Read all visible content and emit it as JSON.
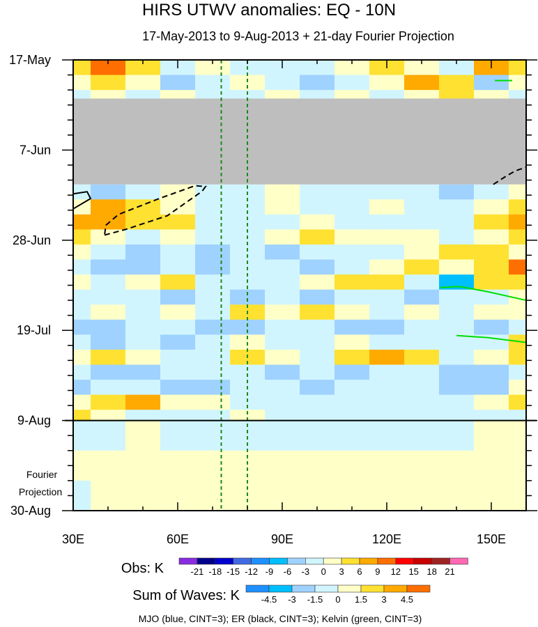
{
  "chart_data": {
    "type": "heatmap",
    "title": "HIRS UTWV anomalies: EQ - 10N",
    "subtitle": "17-May-2013 to 9-Aug-2013 + 21-day Fourier Projection",
    "xlabel": "",
    "ylabel": "",
    "xlim": [
      30,
      160
    ],
    "x_unit": "degrees East",
    "ylim_days_from_start": [
      0,
      105
    ],
    "x_ticks": [
      {
        "value": 30,
        "label": "30E"
      },
      {
        "value": 60,
        "label": "60E"
      },
      {
        "value": 90,
        "label": "90E"
      },
      {
        "value": 120,
        "label": "120E"
      },
      {
        "value": 150,
        "label": "150E"
      }
    ],
    "y_ticks": [
      {
        "day": 0,
        "label": "17-May"
      },
      {
        "day": 21,
        "label": "7-Jun"
      },
      {
        "day": 42,
        "label": "28-Jun"
      },
      {
        "day": 63,
        "label": "19-Jul"
      },
      {
        "day": 84,
        "label": "9-Aug"
      },
      {
        "day": 105,
        "label": "30-Aug"
      }
    ],
    "projection_label": [
      "Fourier",
      "Projection"
    ],
    "observation_end_day": 84,
    "missing_data_days": [
      9,
      29
    ],
    "reference_longitudes": [
      72.5,
      80
    ],
    "grid_lons": [
      30,
      40,
      50,
      60,
      70,
      80,
      90,
      100,
      110,
      120,
      130,
      140,
      150,
      160
    ],
    "obs_rows": [
      {
        "day0": 0,
        "day1": 3.5,
        "values": [
          4.5,
          10.5,
          4.5,
          -1.5,
          1.5,
          -1.5,
          -1.5,
          -1.5,
          1.5,
          4.5,
          1.5,
          -1.5,
          7.5,
          4.5
        ]
      },
      {
        "day0": 3.5,
        "day1": 7,
        "values": [
          1.5,
          4.5,
          1.5,
          -4.5,
          -1.5,
          1.5,
          -1.5,
          -4.5,
          -1.5,
          1.5,
          7.5,
          4.5,
          -4.5,
          1.5
        ]
      },
      {
        "day0": 7,
        "day1": 9,
        "values": [
          -1.5,
          1.5,
          -1.5,
          1.5,
          -1.5,
          -1.5,
          1.5,
          -1.5,
          1.5,
          -1.5,
          1.5,
          4.5,
          1.5,
          -1.5
        ]
      },
      {
        "day0": 29,
        "day1": 32.5,
        "values": [
          -1.5,
          -4.5,
          -1.5,
          1.5,
          -1.5,
          -1.5,
          1.5,
          -1.5,
          -1.5,
          -1.5,
          -1.5,
          -4.5,
          -1.5,
          1.5
        ]
      },
      {
        "day0": 32.5,
        "day1": 36,
        "values": [
          1.5,
          7.5,
          4.5,
          1.5,
          -1.5,
          -1.5,
          1.5,
          -1.5,
          -1.5,
          1.5,
          -1.5,
          -1.5,
          1.5,
          4.5
        ]
      },
      {
        "day0": 36,
        "day1": 39.5,
        "values": [
          7.5,
          7.5,
          4.5,
          4.5,
          -1.5,
          -1.5,
          -1.5,
          1.5,
          -1.5,
          -1.5,
          -1.5,
          -1.5,
          4.5,
          7.5
        ]
      },
      {
        "day0": 39.5,
        "day1": 43,
        "values": [
          4.5,
          1.5,
          -1.5,
          1.5,
          -1.5,
          -1.5,
          1.5,
          4.5,
          1.5,
          1.5,
          1.5,
          -1.5,
          1.5,
          4.5
        ]
      },
      {
        "day0": 43,
        "day1": 46.5,
        "values": [
          1.5,
          -1.5,
          -4.5,
          -1.5,
          -4.5,
          -1.5,
          -4.5,
          -1.5,
          -1.5,
          -1.5,
          1.5,
          4.5,
          4.5,
          1.5
        ]
      },
      {
        "day0": 46.5,
        "day1": 50,
        "values": [
          -1.5,
          -4.5,
          -4.5,
          -1.5,
          -4.5,
          -1.5,
          -1.5,
          -4.5,
          -1.5,
          1.5,
          4.5,
          1.5,
          4.5,
          10.5
        ]
      },
      {
        "day0": 50,
        "day1": 53.5,
        "values": [
          1.5,
          -1.5,
          1.5,
          4.5,
          -1.5,
          -1.5,
          -1.5,
          1.5,
          4.5,
          4.5,
          -1.5,
          -7.5,
          4.5,
          4.5
        ]
      },
      {
        "day0": 53.5,
        "day1": 57,
        "values": [
          -1.5,
          -1.5,
          -1.5,
          -4.5,
          -1.5,
          -4.5,
          -1.5,
          -4.5,
          -1.5,
          -1.5,
          -4.5,
          -1.5,
          -1.5,
          1.5
        ]
      },
      {
        "day0": 57,
        "day1": 60.5,
        "values": [
          -1.5,
          1.5,
          -1.5,
          1.5,
          -1.5,
          4.5,
          1.5,
          4.5,
          1.5,
          -1.5,
          1.5,
          -1.5,
          1.5,
          1.5
        ]
      },
      {
        "day0": 60.5,
        "day1": 64,
        "values": [
          -4.5,
          -4.5,
          -1.5,
          -1.5,
          -4.5,
          -4.5,
          -1.5,
          -1.5,
          -4.5,
          -4.5,
          -1.5,
          -1.5,
          -4.5,
          -1.5
        ]
      },
      {
        "day0": 64,
        "day1": 67.5,
        "values": [
          -1.5,
          -4.5,
          -1.5,
          -4.5,
          -1.5,
          1.5,
          -1.5,
          -1.5,
          1.5,
          -1.5,
          -1.5,
          -1.5,
          -1.5,
          4.5
        ]
      },
      {
        "day0": 67.5,
        "day1": 71,
        "values": [
          1.5,
          4.5,
          1.5,
          -1.5,
          -1.5,
          4.5,
          1.5,
          -1.5,
          4.5,
          7.5,
          4.5,
          -1.5,
          1.5,
          4.5
        ]
      },
      {
        "day0": 71,
        "day1": 74.5,
        "values": [
          -1.5,
          -4.5,
          -4.5,
          -1.5,
          -1.5,
          -1.5,
          -4.5,
          -1.5,
          -4.5,
          -1.5,
          -1.5,
          -4.5,
          -4.5,
          -1.5
        ]
      },
      {
        "day0": 74.5,
        "day1": 78,
        "values": [
          -4.5,
          -1.5,
          -1.5,
          -4.5,
          -4.5,
          -1.5,
          -1.5,
          -4.5,
          -1.5,
          -1.5,
          -1.5,
          -4.5,
          -4.5,
          1.5
        ]
      },
      {
        "day0": 78,
        "day1": 81.5,
        "values": [
          1.5,
          4.5,
          7.5,
          1.5,
          1.5,
          -1.5,
          -1.5,
          -1.5,
          -1.5,
          -1.5,
          -1.5,
          -1.5,
          1.5,
          4.5
        ]
      },
      {
        "day0": 81.5,
        "day1": 84,
        "values": [
          4.5,
          1.5,
          -1.5,
          -1.5,
          -1.5,
          1.5,
          -1.5,
          -1.5,
          -1.5,
          -1.5,
          -1.5,
          -1.5,
          -1.5,
          -1.5
        ]
      }
    ],
    "projection_rows": [
      {
        "day0": 84,
        "day1": 91,
        "values": [
          -0.75,
          -0.75,
          0.75,
          -0.75,
          -0.75,
          -0.75,
          -0.75,
          -0.75,
          -0.75,
          -0.75,
          -0.75,
          -0.75,
          0.75,
          0.75
        ]
      },
      {
        "day0": 91,
        "day1": 98,
        "values": [
          0.75,
          0.75,
          0.75,
          0.75,
          0.75,
          0.75,
          0.75,
          0.75,
          0.75,
          0.75,
          0.75,
          0.75,
          0.75,
          0.75
        ]
      },
      {
        "day0": 98,
        "day1": 105,
        "values": [
          -0.75,
          0.75,
          0.75,
          0.75,
          0.75,
          0.75,
          0.75,
          0.75,
          0.75,
          0.75,
          0.75,
          0.75,
          0.75,
          0.75
        ]
      }
    ],
    "contours": [
      {
        "wave": "ER",
        "color": "#000000",
        "dashed": true,
        "closed": true,
        "points": [
          [
            39,
            40.8
          ],
          [
            45,
            39.5
          ],
          [
            57,
            36.3
          ],
          [
            67,
            30.6
          ],
          [
            68,
            29.5
          ],
          [
            65,
            29.3
          ],
          [
            55,
            32.2
          ],
          [
            43,
            36
          ],
          [
            39.4,
            38.5
          ]
        ]
      },
      {
        "wave": "ER",
        "color": "#000000",
        "dashed": false,
        "closed": false,
        "points": [
          [
            30,
            34.7
          ],
          [
            35,
            32.3
          ],
          [
            34,
            30.7
          ],
          [
            30,
            31.2
          ]
        ]
      },
      {
        "wave": "ER",
        "color": "#000000",
        "dashed": true,
        "closed": false,
        "points": [
          [
            150.6,
            29
          ],
          [
            154,
            27.2
          ],
          [
            157,
            25.8
          ],
          [
            160,
            25
          ]
        ]
      },
      {
        "wave": "Kelvin",
        "color": "#00dd00",
        "dashed": false,
        "closed": false,
        "points": [
          [
            135.4,
            53
          ],
          [
            141,
            52.8
          ],
          [
            149,
            54
          ],
          [
            160,
            56
          ]
        ]
      },
      {
        "wave": "Kelvin",
        "color": "#00dd00",
        "dashed": false,
        "closed": false,
        "points": [
          [
            140,
            64.2
          ],
          [
            149,
            64.7
          ],
          [
            160,
            65.8
          ]
        ]
      },
      {
        "wave": "Kelvin",
        "color": "#00dd00",
        "dashed": false,
        "closed": false,
        "points": [
          [
            151,
            4.8
          ],
          [
            156,
            4.8
          ]
        ]
      }
    ],
    "obs_colorbar": {
      "label": "Obs: K",
      "levels": [
        "-21",
        "-18",
        "-15",
        "-12",
        "-9",
        "-6",
        "-3",
        "0",
        "3",
        "6",
        "9",
        "12",
        "15",
        "18",
        "21"
      ],
      "colors": [
        "#8a2be2",
        "#00008b",
        "#0000cd",
        "#4169e1",
        "#1e90ff",
        "#00bfff",
        "#a0d2ff",
        "#d1f5ff",
        "#ffffc8",
        "#ffe132",
        "#ffaa00",
        "#ff6e00",
        "#ff0000",
        "#c80000",
        "#a02323",
        "#ff69b4"
      ]
    },
    "waves_colorbar": {
      "label": "Sum of Waves: K",
      "levels": [
        "-4.5",
        "-3",
        "-1.5",
        "0",
        "1.5",
        "3",
        "4.5"
      ],
      "colors": [
        "#1e90ff",
        "#00bfff",
        "#a0d2ff",
        "#d1f5ff",
        "#ffffc8",
        "#ffe132",
        "#ffaa00",
        "#ff6e00"
      ]
    },
    "missing_color": "#bebebe",
    "footer": "MJO (blue, CINT=3); ER (black, CINT=3); Kelvin (green, CINT=3)"
  }
}
